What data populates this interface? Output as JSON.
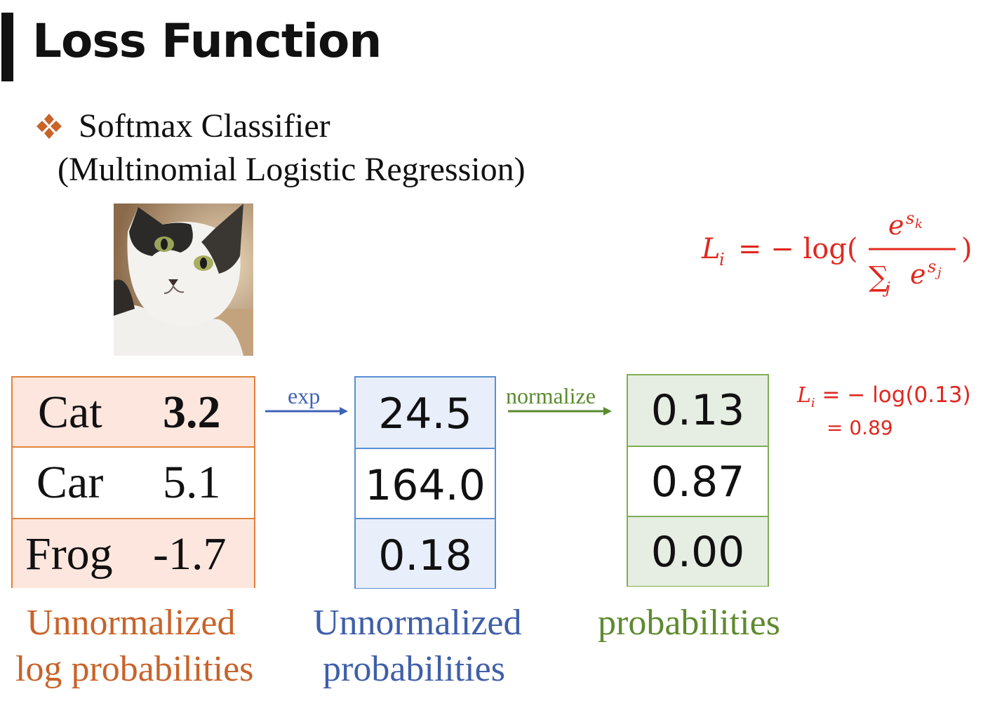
{
  "slide": {
    "title": "Loss Function",
    "bullet_icon": "diamond-bullet-icon",
    "subtitle_line1": "Softmax Classifier",
    "subtitle_line2": "(Multinomial Logistic Regression)"
  },
  "image": {
    "subject": "cat-photo"
  },
  "formula": {
    "lhs": "L",
    "lhs_sub": "i",
    "equals_neg_log": "= − log(",
    "numerator": "e",
    "numerator_sup": "s",
    "numerator_sup_sub": "k",
    "denominator_sum": "∑",
    "denominator_sum_sub": "j",
    "denominator": "e",
    "denominator_sup": "s",
    "denominator_sup_sub": "j",
    "close": ")",
    "color": "#e0281f"
  },
  "example": {
    "line1_lhs": "L",
    "line1_lhs_sub": "i",
    "line1_rhs": " = − log(0.13)",
    "line2": "= 0.89"
  },
  "scores": {
    "rows": [
      {
        "label": "Cat",
        "value": "3.2"
      },
      {
        "label": "Car",
        "value": "5.1"
      },
      {
        "label": "Frog",
        "value": "-1.7"
      }
    ],
    "caption_line1": "Unnormalized",
    "caption_line2": "log probabilities",
    "border_color": "#e0823c"
  },
  "exp_step": {
    "label": "exp",
    "values": [
      "24.5",
      "164.0",
      "0.18"
    ],
    "caption_line1": "Unnormalized",
    "caption_line2": "probabilities",
    "color": "#3f62b8"
  },
  "normalize_step": {
    "label": "normalize",
    "values": [
      "0.13",
      "0.87",
      "0.00"
    ],
    "caption": "probabilities",
    "color": "#5a8a2f"
  }
}
